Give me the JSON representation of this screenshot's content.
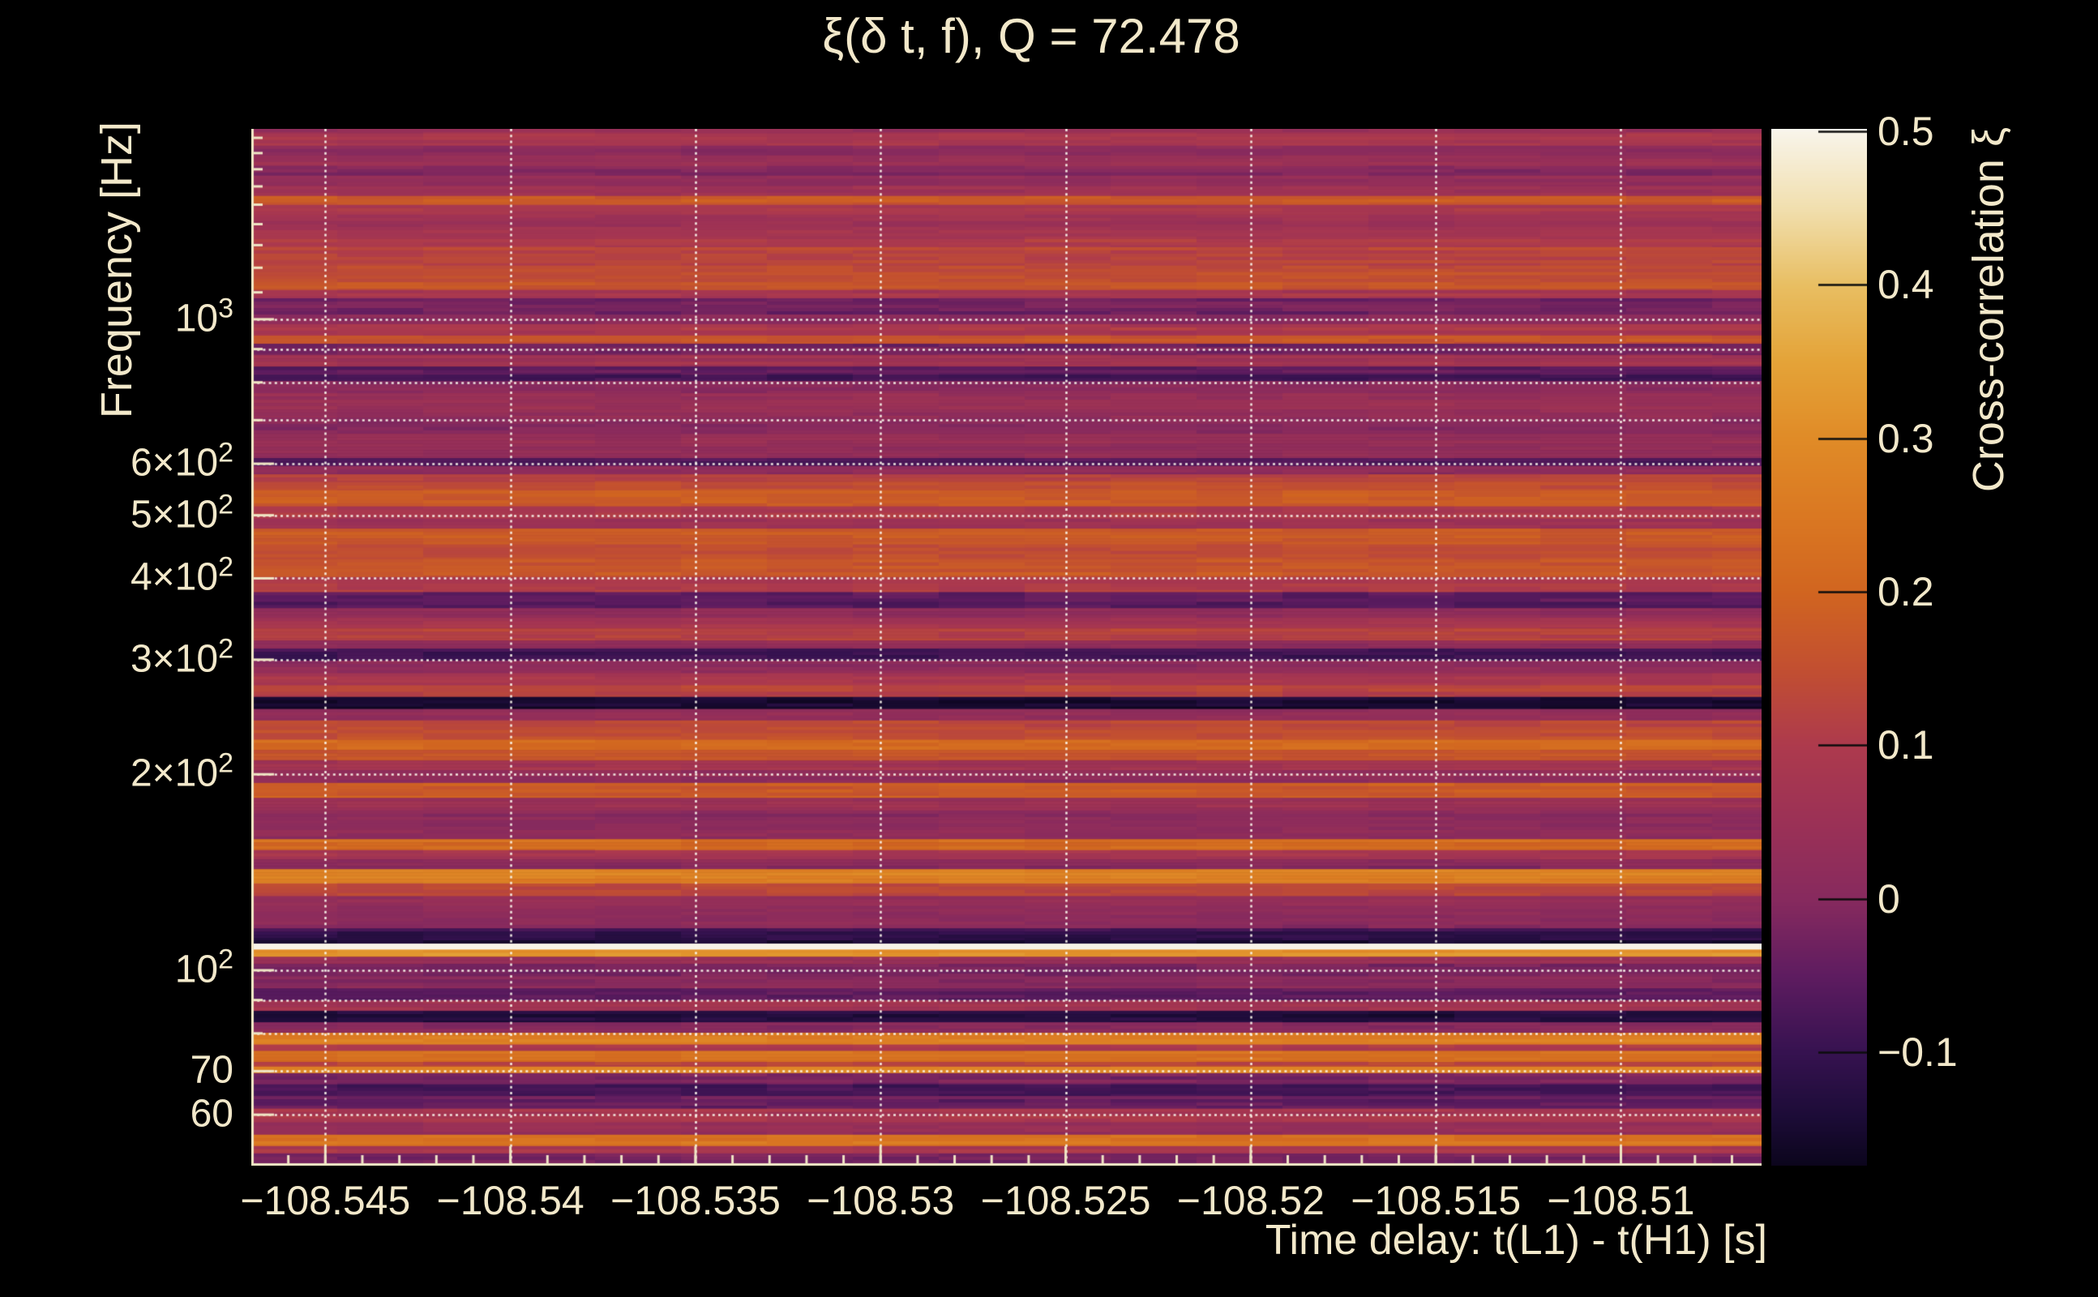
{
  "title": {
    "text": "ξ(δ t, f), Q = 72.478"
  },
  "colors": {
    "background": "#000000",
    "text": "#f2e8ca",
    "frame": "#efe5c4",
    "grid": "rgba(250,246,235,0.92)",
    "colorbar_tick": "#0d0d0d"
  },
  "axes": {
    "x": {
      "label": "Time delay: t(L1) - t(H1) [s]",
      "range_s": [
        -108.547,
        -108.5062
      ],
      "tick_labels": [
        "−108.545",
        "−108.54",
        "−108.535",
        "−108.53",
        "−108.525",
        "−108.52",
        "−108.515",
        "−108.51"
      ],
      "tick_values": [
        -108.545,
        -108.54,
        -108.535,
        -108.53,
        -108.525,
        -108.52,
        -108.515,
        -108.51
      ],
      "minor_step_s": 0.001
    },
    "y": {
      "label": "Frequency [Hz]",
      "scale": "log",
      "range_hz": [
        50.1,
        1961
      ],
      "ticks": [
        {
          "text": "10",
          "sup": "3",
          "hz": 1000
        },
        {
          "text": "6×10",
          "sup": "2",
          "hz": 600
        },
        {
          "text": "5×10",
          "sup": "2",
          "hz": 500
        },
        {
          "text": "4×10",
          "sup": "2",
          "hz": 400
        },
        {
          "text": "3×10",
          "sup": "2",
          "hz": 300
        },
        {
          "text": "2×10",
          "sup": "2",
          "hz": 200
        },
        {
          "text": "10",
          "sup": "2",
          "hz": 100
        },
        {
          "text": "70",
          "sup": "",
          "hz": 70
        },
        {
          "text": "60",
          "sup": "",
          "hz": 60
        }
      ],
      "minor_ticks_hz": [
        1900,
        1800,
        1700,
        1600,
        1500,
        1400,
        1300,
        1200,
        1100,
        900,
        800,
        700,
        90,
        80,
        50
      ],
      "grid_hz": [
        1000,
        900,
        800,
        700,
        600,
        500,
        400,
        300,
        200,
        100,
        90,
        80,
        70,
        60
      ]
    }
  },
  "colorbar": {
    "label": "Cross-correlation ξ",
    "tick_labels": [
      "0.5",
      "0.4",
      "0.3",
      "0.2",
      "0.1",
      "0",
      "−0.1"
    ],
    "tick_values": [
      0.5,
      0.4,
      0.3,
      0.2,
      0.1,
      0.0,
      -0.1
    ],
    "value_range": [
      -0.174,
      0.5016
    ]
  },
  "chart_data": {
    "type": "heatmap",
    "title": "ξ(δ t, f), Q = 72.478",
    "q_value": 72.478,
    "xlabel": "Time delay: t(L1) - t(H1) [s]",
    "ylabel": "Frequency [Hz]",
    "zlabel": "Cross-correlation ξ",
    "x_range_s": [
      -108.547,
      -108.5062
    ],
    "y_range_hz": [
      50.1,
      1961
    ],
    "y_scale": "log",
    "value_range": [
      -0.174,
      0.5016
    ],
    "time_variation": "cross-correlation is nearly constant in time; only faint (<±0.03) column-to-column fluctuation is visible",
    "colormap_stops": [
      [
        -0.174,
        "#0b051c"
      ],
      [
        -0.14,
        "#1d0c38"
      ],
      [
        -0.1,
        "#361250"
      ],
      [
        -0.05,
        "#5e1c60"
      ],
      [
        0.0,
        "#872a5e"
      ],
      [
        0.05,
        "#9b3156"
      ],
      [
        0.1,
        "#ad3a4d"
      ],
      [
        0.15,
        "#c24f31"
      ],
      [
        0.2,
        "#d16520"
      ],
      [
        0.25,
        "#da7822"
      ],
      [
        0.3,
        "#e08b27"
      ],
      [
        0.35,
        "#e4a338"
      ],
      [
        0.4,
        "#e8be62"
      ],
      [
        0.45,
        "#f1dfae"
      ],
      [
        0.5,
        "#f8f4e9"
      ],
      [
        0.5016,
        "#faf7ef"
      ]
    ],
    "frequency_profile": [
      [
        1961,
        0.05
      ],
      [
        1929,
        0.08
      ],
      [
        1848,
        0.02
      ],
      [
        1785,
        0.04
      ],
      [
        1720,
        0.0
      ],
      [
        1662,
        0.03
      ],
      [
        1601,
        0.06
      ],
      [
        1547,
        0.17
      ],
      [
        1499,
        0.09
      ],
      [
        1448,
        0.05
      ],
      [
        1387,
        0.07
      ],
      [
        1328,
        0.1
      ],
      [
        1291,
        0.13
      ],
      [
        1209,
        0.15
      ],
      [
        1167,
        0.16
      ],
      [
        1109,
        0.08
      ],
      [
        1077,
        -0.03
      ],
      [
        1017,
        0.0
      ],
      [
        983,
        0.09
      ],
      [
        944,
        0.16
      ],
      [
        917,
        -0.02
      ],
      [
        881,
        0.06
      ],
      [
        846,
        -0.05
      ],
      [
        822,
        -0.09
      ],
      [
        804,
        0.0
      ],
      [
        770,
        0.04
      ],
      [
        707,
        0.01
      ],
      [
        667,
        0.03
      ],
      [
        612,
        -0.06
      ],
      [
        595,
        0.02
      ],
      [
        578,
        0.13
      ],
      [
        562,
        0.15
      ],
      [
        546,
        0.17
      ],
      [
        516,
        0.09
      ],
      [
        494,
        0.05
      ],
      [
        477,
        0.18
      ],
      [
        451,
        0.15
      ],
      [
        428,
        0.17
      ],
      [
        402,
        0.1
      ],
      [
        381,
        -0.06
      ],
      [
        360,
        0.03
      ],
      [
        348,
        0.08
      ],
      [
        335,
        0.12
      ],
      [
        321,
        0.03
      ],
      [
        312,
        -0.08
      ],
      [
        299,
        0.02
      ],
      [
        286,
        0.09
      ],
      [
        274,
        0.12
      ],
      [
        263,
        -0.15
      ],
      [
        252,
        0.03
      ],
      [
        242,
        0.13
      ],
      [
        234,
        0.15
      ],
      [
        226,
        0.22
      ],
      [
        218,
        0.17
      ],
      [
        210,
        0.08
      ],
      [
        203,
        0.02
      ],
      [
        194,
        0.18
      ],
      [
        184,
        0.05
      ],
      [
        176,
        0.01
      ],
      [
        170,
        0.02
      ],
      [
        159,
        0.22
      ],
      [
        153,
        0.08
      ],
      [
        148,
        0.0
      ],
      [
        143,
        0.27
      ],
      [
        136,
        0.12
      ],
      [
        130,
        0.03
      ],
      [
        123,
        0.01
      ],
      [
        116,
        -0.1
      ],
      [
        111.2,
        -0.14
      ],
      [
        109.9,
        0.5
      ],
      [
        107.6,
        0.32
      ],
      [
        104.9,
        0.05
      ],
      [
        102.3,
        -0.02
      ],
      [
        97.9,
        0.0
      ],
      [
        93.8,
        -0.06
      ],
      [
        89.9,
        0.06
      ],
      [
        86.6,
        -0.13
      ],
      [
        83.2,
        0.0
      ],
      [
        80.2,
        0.26
      ],
      [
        76.9,
        0.1
      ],
      [
        75.2,
        0.23
      ],
      [
        72.3,
        0.14
      ],
      [
        71.1,
        0.3
      ],
      [
        69.5,
        -0.02
      ],
      [
        66.8,
        -0.08
      ],
      [
        64.1,
        -0.04
      ],
      [
        61.3,
        0.08
      ],
      [
        58.4,
        0.03
      ],
      [
        55.9,
        0.24
      ],
      [
        53.7,
        0.08
      ],
      [
        52.3,
        -0.02
      ]
    ]
  }
}
